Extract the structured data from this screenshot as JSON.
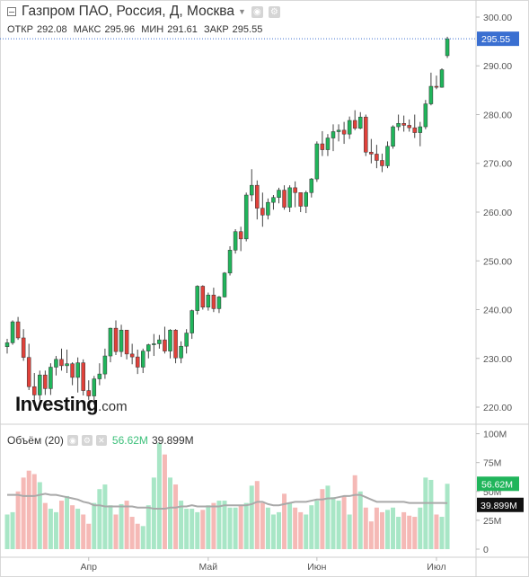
{
  "header": {
    "title": "Газпром ПАО, Россия, Д, Москва",
    "ohlc": {
      "open_label": "ОТКР",
      "open": "292.08",
      "high_label": "МАКС",
      "high": "295.96",
      "low_label": "МИН",
      "low": "291.61",
      "close_label": "ЗАКР",
      "close": "295.55"
    }
  },
  "logo": {
    "main": "Investing",
    "suffix": ".com"
  },
  "volume_panel": {
    "label": "Объём (20)",
    "current_value": "56.62M",
    "ma_value": "39.899M"
  },
  "colors": {
    "up": "#20b55b",
    "down": "#e0413a",
    "vol_up": "#a8e6c6",
    "vol_down": "#f5b9b6",
    "ma_line": "#a9a9a9",
    "last_price": "#3a6fd1",
    "ma_badge": "#111111"
  },
  "chart_data": [
    {
      "type": "candlestick",
      "y_axis_side": "right",
      "yticks": [
        "220.00",
        "230.00",
        "240.00",
        "250.00",
        "260.00",
        "270.00",
        "280.00",
        "290.00",
        "300.00"
      ],
      "ylim": [
        216.5,
        303.5
      ],
      "last_price_label": "295.55",
      "xticks": [
        "Апр",
        "Май",
        "Июн",
        "Июл"
      ],
      "ohlc": [
        [
          232.4,
          234,
          231,
          233.2
        ],
        [
          233.2,
          237.8,
          232.8,
          237.5
        ],
        [
          237.5,
          238.5,
          233.8,
          234.2
        ],
        [
          234.2,
          236,
          229.5,
          230.2
        ],
        [
          230.2,
          233,
          223.5,
          224.2
        ],
        [
          224.2,
          227,
          220.8,
          222.5
        ],
        [
          222.5,
          227.5,
          221.5,
          226.6
        ],
        [
          226.6,
          227.5,
          222.5,
          223.8
        ],
        [
          223.8,
          229,
          222.5,
          228.2
        ],
        [
          228.2,
          230.5,
          226.5,
          229.8
        ],
        [
          229.8,
          232,
          227.5,
          228.5
        ],
        [
          228.5,
          231.8,
          227,
          228.9
        ],
        [
          228.9,
          229.2,
          224.5,
          226.1
        ],
        [
          226.1,
          230.2,
          223,
          229.1
        ],
        [
          229.1,
          229.8,
          222.4,
          223.4
        ],
        [
          223.4,
          225.5,
          221.5,
          222.3
        ],
        [
          222.3,
          226.4,
          220.5,
          225.8
        ],
        [
          225.8,
          229,
          224.5,
          226.8
        ],
        [
          226.8,
          232,
          225.8,
          230.5
        ],
        [
          230.5,
          236.3,
          229.2,
          236.2
        ],
        [
          236.2,
          237.8,
          230.7,
          231.4
        ],
        [
          231.4,
          236.9,
          230.3,
          235.8
        ],
        [
          235.8,
          235.8,
          229.8,
          230.9
        ],
        [
          230.9,
          233,
          228.8,
          230.3
        ],
        [
          230.3,
          231.8,
          226.8,
          228.2
        ],
        [
          228.2,
          232,
          227,
          231.5
        ],
        [
          231.5,
          233,
          230,
          232.8
        ],
        [
          232.8,
          235,
          230.5,
          233
        ],
        [
          233,
          234.8,
          232,
          233.8
        ],
        [
          233.8,
          236.5,
          231,
          231.5
        ],
        [
          231.5,
          236,
          230,
          235.8
        ],
        [
          235.8,
          236,
          229,
          230.1
        ],
        [
          230.1,
          233.5,
          229,
          232.5
        ],
        [
          232.5,
          236,
          231,
          235.2
        ],
        [
          235.2,
          240,
          234,
          239.8
        ],
        [
          239.8,
          245,
          239,
          244.8
        ],
        [
          244.8,
          245,
          240,
          240.5
        ],
        [
          240.5,
          243.5,
          239.8,
          243
        ],
        [
          243,
          244.5,
          239.5,
          240.2
        ],
        [
          240.2,
          242.8,
          239.3,
          242.6
        ],
        [
          242.6,
          247.7,
          242.5,
          247.5
        ],
        [
          247.5,
          253,
          247,
          252.2
        ],
        [
          252.2,
          256.5,
          251.5,
          256
        ],
        [
          256,
          257,
          252,
          254.5
        ],
        [
          254.5,
          264,
          254,
          263.5
        ],
        [
          263.5,
          268.8,
          262.2,
          265.5
        ],
        [
          265.5,
          266.5,
          258.5,
          260.8
        ],
        [
          260.8,
          264,
          257,
          259.4
        ],
        [
          259.4,
          262.8,
          258.5,
          262
        ],
        [
          262,
          263.5,
          260.5,
          263
        ],
        [
          263,
          265,
          261.8,
          264.5
        ],
        [
          264.5,
          265.5,
          260.5,
          261
        ],
        [
          261,
          265.5,
          260,
          265
        ],
        [
          265,
          266.3,
          261,
          264
        ],
        [
          264,
          263.8,
          260,
          261.2
        ],
        [
          261.2,
          264.4,
          259.8,
          264
        ],
        [
          264,
          267,
          263,
          266.8
        ],
        [
          266.8,
          274.5,
          266.2,
          274
        ],
        [
          274,
          276.6,
          271.5,
          272.8
        ],
        [
          272.8,
          276,
          271.5,
          275.2
        ],
        [
          275.2,
          278,
          272.5,
          276.5
        ],
        [
          276.5,
          278,
          274.5,
          276.8
        ],
        [
          276.8,
          278.5,
          274,
          276
        ],
        [
          276,
          279.6,
          275,
          278.8
        ],
        [
          278.8,
          280.9,
          276.8,
          277.2
        ],
        [
          277.2,
          280.5,
          277,
          279.5
        ],
        [
          279.5,
          280,
          271.5,
          272.3
        ],
        [
          272.3,
          275,
          270,
          271.9
        ],
        [
          271.9,
          273.8,
          269,
          270.6
        ],
        [
          270.6,
          272,
          268.2,
          269.5
        ],
        [
          269.5,
          274.5,
          269,
          273.5
        ],
        [
          273.5,
          277.8,
          273,
          277.5
        ],
        [
          277.5,
          280,
          276.7,
          278.2
        ],
        [
          278.2,
          279.8,
          276.5,
          277.8
        ],
        [
          277.8,
          279,
          276.5,
          277.3
        ],
        [
          277.3,
          280,
          275.2,
          276.3
        ],
        [
          276.3,
          278.5,
          273.5,
          277.5
        ],
        [
          277.5,
          283,
          277,
          282.2
        ],
        [
          282.2,
          288.6,
          281.9,
          285.8
        ],
        [
          285.8,
          288,
          285.2,
          285.6
        ],
        [
          285.6,
          289.5,
          285.5,
          289.2
        ],
        [
          292.08,
          295.96,
          291.61,
          295.55
        ]
      ],
      "volume_axis": {
        "ticks": [
          "0",
          "25M",
          "50M",
          "75M",
          "100M"
        ],
        "ylim": [
          0,
          102
        ]
      },
      "volume_millions": [
        30,
        32,
        50,
        62,
        68,
        65,
        58,
        40,
        35,
        32,
        42,
        46,
        38,
        35,
        30,
        22,
        40,
        52,
        56,
        38,
        30,
        39,
        42,
        28,
        22,
        20,
        38,
        62,
        92,
        82,
        62,
        56,
        42,
        35,
        35,
        32,
        34,
        38,
        40,
        42,
        42,
        36,
        36,
        38,
        40,
        55,
        59,
        40,
        36,
        30,
        32,
        48,
        40,
        36,
        32,
        30,
        38,
        42,
        52,
        55,
        45,
        42,
        46,
        30,
        64,
        50,
        36,
        24,
        36,
        32,
        34,
        36,
        28,
        32,
        29,
        28,
        36,
        62,
        60,
        30,
        28,
        56.62
      ],
      "volume_ma": [
        47,
        47,
        47,
        46,
        46,
        46,
        47,
        48,
        47,
        47,
        46,
        45,
        44,
        43,
        41,
        40,
        38,
        38,
        37,
        37,
        37,
        37,
        37,
        37,
        36,
        36,
        36,
        35,
        35,
        35,
        36,
        36,
        37,
        37,
        38,
        37,
        37,
        37,
        37,
        37,
        38,
        38,
        38,
        38,
        38,
        39,
        41,
        41,
        39,
        38,
        38,
        39,
        40,
        41,
        41,
        41,
        42,
        43,
        43,
        44,
        44,
        45,
        46,
        46,
        47,
        47,
        45,
        43,
        41,
        41,
        41,
        41,
        41,
        41,
        40,
        40,
        40,
        40,
        40,
        40,
        40,
        39.899
      ]
    }
  ]
}
